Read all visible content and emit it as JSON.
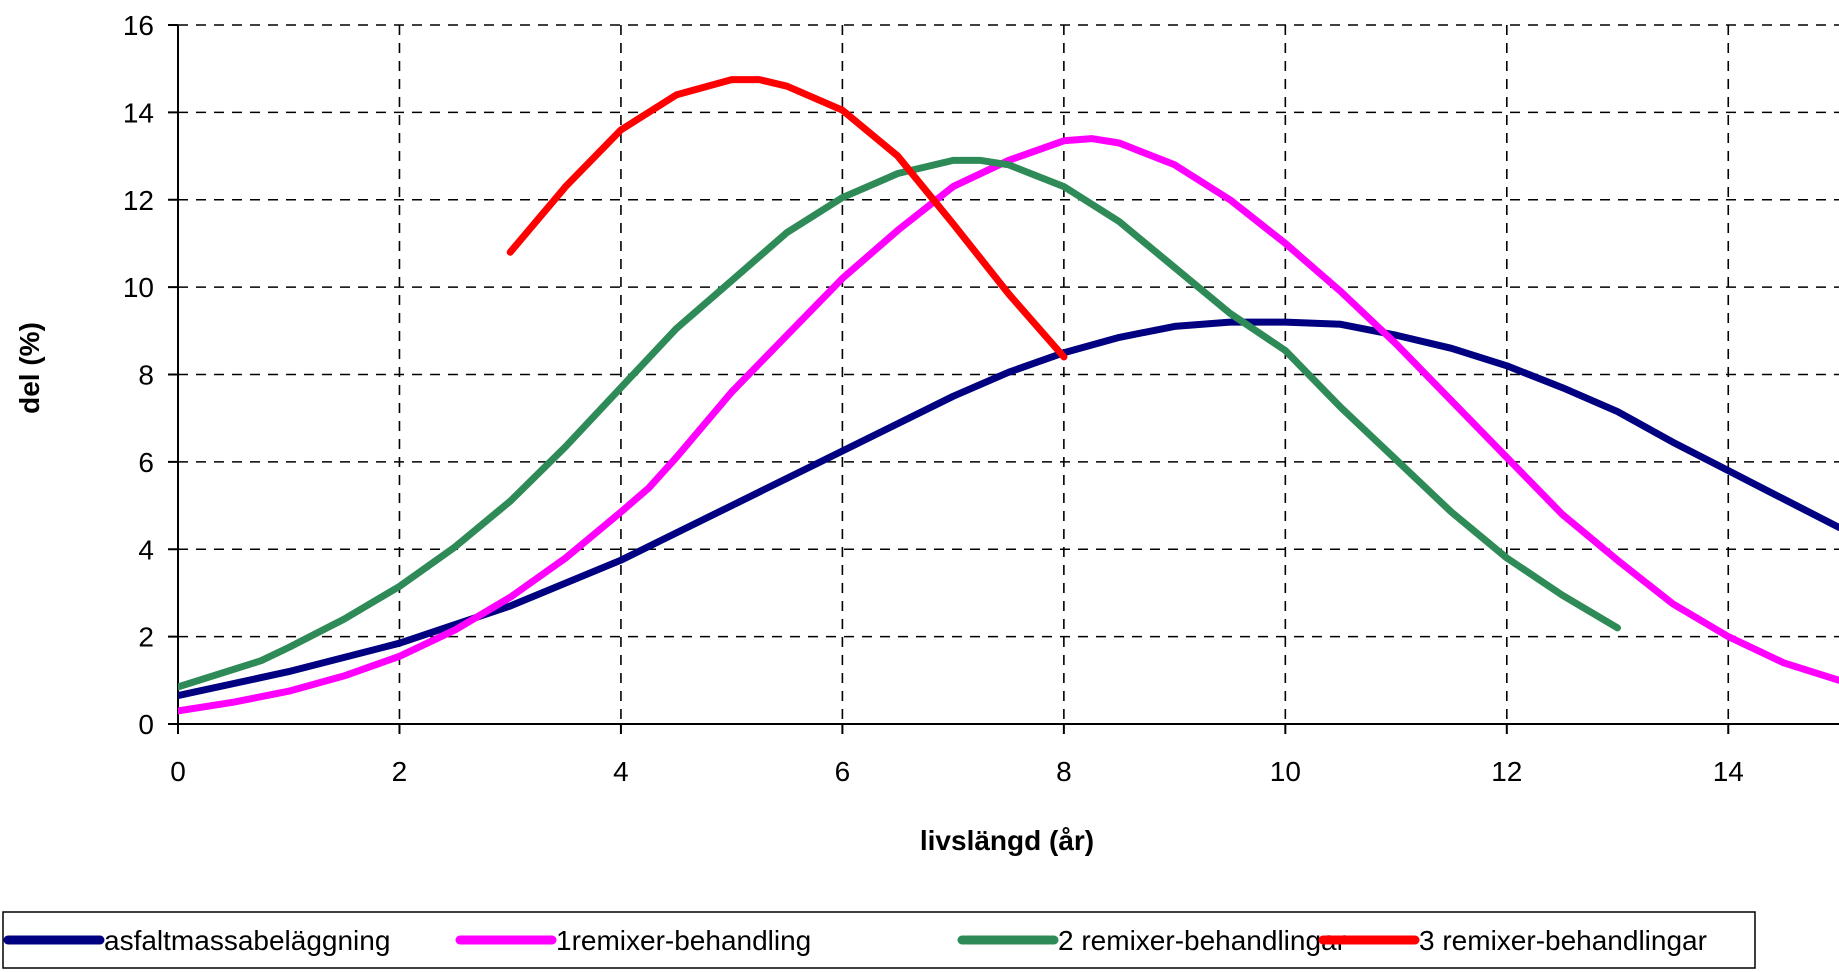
{
  "chart_data": {
    "type": "line",
    "title": "",
    "xlabel": "livslängd (år)",
    "ylabel": "del (%)",
    "xlim": [
      0,
      15
    ],
    "ylim": [
      0,
      16
    ],
    "xticks": [
      0,
      2,
      4,
      6,
      8,
      10,
      12,
      14
    ],
    "yticks": [
      0,
      2,
      4,
      6,
      8,
      10,
      12,
      14,
      16
    ],
    "grid": true,
    "grid_style": "dashed",
    "legend_position": "bottom",
    "series": [
      {
        "name": "asfaltmassabeläggning",
        "color": "#000080",
        "x": [
          0,
          1,
          2,
          3,
          4,
          5,
          6,
          7,
          7.5,
          8,
          8.5,
          9,
          9.5,
          10,
          10.5,
          11,
          11.5,
          12,
          12.5,
          13,
          13.5,
          14,
          14.5,
          15
        ],
        "y": [
          0.65,
          1.2,
          1.85,
          2.7,
          3.75,
          5.0,
          6.25,
          7.5,
          8.05,
          8.5,
          8.85,
          9.1,
          9.2,
          9.2,
          9.15,
          8.9,
          8.6,
          8.2,
          7.7,
          7.15,
          6.45,
          5.8,
          5.15,
          4.5
        ]
      },
      {
        "name": "1remixer-behandling",
        "color": "#FF00FF",
        "x": [
          0,
          0.5,
          1,
          1.5,
          2,
          2.5,
          3,
          3.5,
          4,
          4.25,
          4.5,
          5,
          5.5,
          6,
          6.5,
          7,
          7.5,
          8,
          8.25,
          8.5,
          9,
          9.5,
          10,
          10.5,
          11,
          11.5,
          12,
          12.5,
          13,
          13.5,
          14,
          14.5,
          15
        ],
        "y": [
          0.3,
          0.5,
          0.75,
          1.1,
          1.55,
          2.15,
          2.9,
          3.8,
          4.85,
          5.4,
          6.1,
          7.6,
          8.9,
          10.2,
          11.3,
          12.3,
          12.9,
          13.35,
          13.4,
          13.3,
          12.8,
          12.0,
          11.0,
          9.9,
          8.7,
          7.4,
          6.1,
          4.8,
          3.75,
          2.75,
          2.0,
          1.4,
          1.0
        ]
      },
      {
        "name": "2 remixer-behandlingar",
        "color": "#2E8B57",
        "x": [
          0,
          0.5,
          0.75,
          1,
          1.5,
          2,
          2.5,
          3,
          3.5,
          4,
          4.5,
          5,
          5.5,
          6,
          6.5,
          7,
          7.25,
          7.5,
          8,
          8.5,
          9,
          9.5,
          10,
          10.5,
          11,
          11.5,
          12,
          12.5,
          13
        ],
        "y": [
          0.85,
          1.25,
          1.45,
          1.75,
          2.4,
          3.15,
          4.05,
          5.1,
          6.35,
          7.7,
          9.05,
          10.15,
          11.25,
          12.05,
          12.6,
          12.9,
          12.9,
          12.8,
          12.3,
          11.5,
          10.45,
          9.4,
          8.55,
          7.25,
          6.05,
          4.85,
          3.8,
          2.95,
          2.2
        ]
      },
      {
        "name": "3 remixer-behandlingar",
        "color": "#FF0000",
        "x": [
          3,
          3.5,
          4,
          4.5,
          5,
          5.25,
          5.5,
          6,
          6.5,
          7,
          7.5,
          8
        ],
        "y": [
          10.8,
          12.3,
          13.6,
          14.4,
          14.75,
          14.75,
          14.6,
          14.05,
          13.0,
          11.45,
          9.85,
          8.4
        ]
      }
    ]
  }
}
